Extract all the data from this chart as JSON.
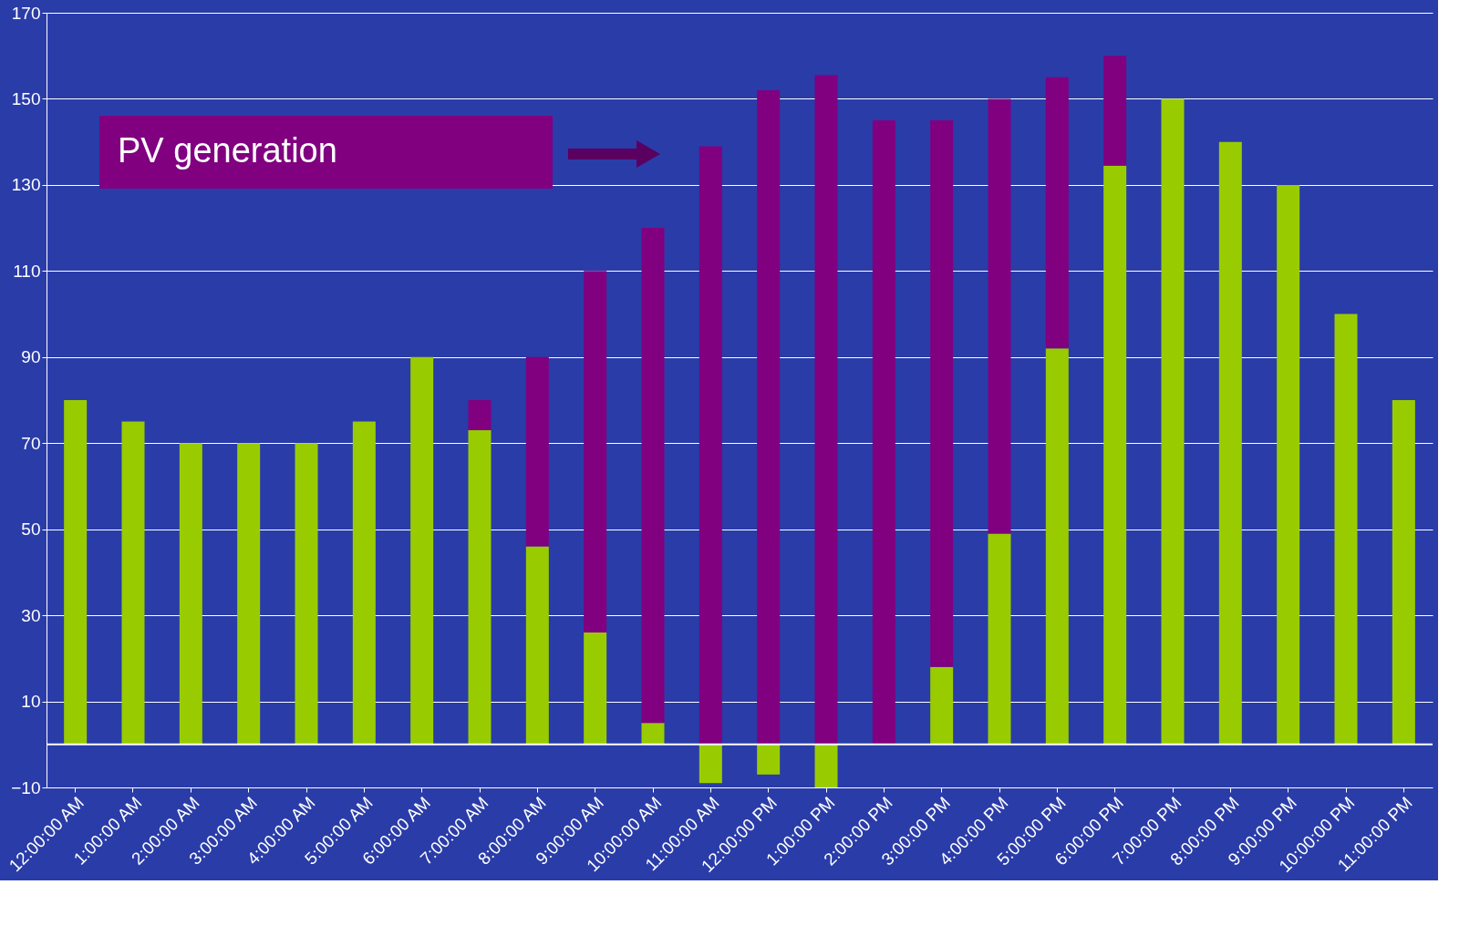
{
  "chart_data": {
    "type": "bar",
    "stacked": true,
    "categories": [
      "12:00:00 AM",
      "1:00:00 AM",
      "2:00:00 AM",
      "3:00:00 AM",
      "4:00:00 AM",
      "5:00:00 AM",
      "6:00:00 AM",
      "7:00:00 AM",
      "8:00:00 AM",
      "9:00:00 AM",
      "10:00:00 AM",
      "11:00:00 AM",
      "12:00:00 PM",
      "1:00:00 PM",
      "2:00:00 PM",
      "3:00:00 PM",
      "4:00:00 PM",
      "5:00:00 PM",
      "6:00:00 PM",
      "7:00:00 PM",
      "8:00:00 PM",
      "9:00:00 PM",
      "10:00:00 PM",
      "11:00:00 PM"
    ],
    "series": [
      {
        "color": "#99cc00",
        "values": [
          80,
          75,
          70,
          70,
          70,
          75,
          90,
          73,
          46,
          26,
          5,
          -9,
          -7,
          -10,
          0,
          18,
          49,
          92,
          134.5,
          150,
          140,
          130,
          100,
          80
        ]
      },
      {
        "color": "#800080",
        "values": [
          0,
          0,
          0,
          0,
          0,
          0,
          0,
          7,
          44,
          84,
          115,
          139,
          152,
          155.5,
          145,
          127,
          101,
          63,
          25.5,
          0,
          0,
          0,
          0,
          0
        ]
      }
    ],
    "ylim": [
      -10,
      170
    ],
    "yticks": [
      -10,
      10,
      30,
      50,
      70,
      90,
      110,
      130,
      150,
      170
    ],
    "grid": "y",
    "ref_lines": [
      {
        "axis": "y",
        "value": 0
      }
    ],
    "annotations": [
      "PV generation"
    ]
  }
}
